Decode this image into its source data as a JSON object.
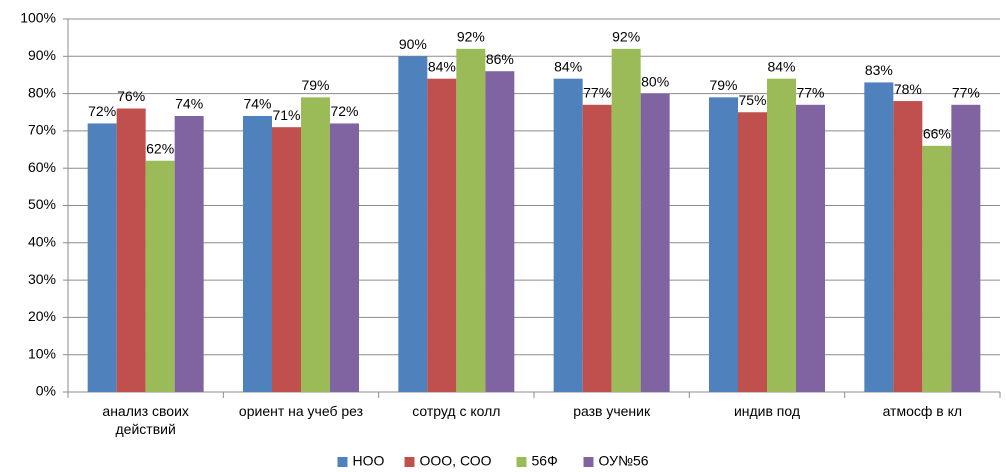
{
  "chart_data": {
    "type": "bar",
    "categories": [
      "анализ своих действий",
      "ориент на учеб рез",
      "сотруд с колл",
      "разв ученик",
      "индив под",
      "атмосф в кл"
    ],
    "series": [
      {
        "name": "НОО",
        "color": "#4f81bd",
        "values": [
          72,
          74,
          90,
          84,
          79,
          83
        ],
        "value_labels": [
          "72%",
          "74%",
          "90%",
          "84%",
          "79%",
          "83%"
        ]
      },
      {
        "name": "ООО, СОО",
        "color": "#c0504d",
        "values": [
          76,
          71,
          84,
          77,
          75,
          78
        ],
        "value_labels": [
          "76%",
          "71%",
          "84%",
          "77%",
          "75%",
          "78%"
        ]
      },
      {
        "name": "56Ф",
        "color": "#9bbb59",
        "values": [
          62,
          79,
          92,
          92,
          84,
          66
        ],
        "value_labels": [
          "62%",
          "79%",
          "92%",
          "92%",
          "84%",
          "66%"
        ]
      },
      {
        "name": "ОУ№56",
        "color": "#8064a2",
        "values": [
          74,
          72,
          86,
          80,
          77,
          77
        ],
        "value_labels": [
          "74%",
          "72%",
          "86%",
          "80%",
          "77%",
          "77%"
        ]
      }
    ],
    "ylim": [
      0,
      100
    ],
    "yticks": [
      {
        "value": 0,
        "label": "0%"
      },
      {
        "value": 10,
        "label": "10%"
      },
      {
        "value": 20,
        "label": "20%"
      },
      {
        "value": 30,
        "label": "30%"
      },
      {
        "value": 40,
        "label": "40%"
      },
      {
        "value": 50,
        "label": "50%"
      },
      {
        "value": 60,
        "label": "60%"
      },
      {
        "value": 70,
        "label": "70%"
      },
      {
        "value": 80,
        "label": "80%"
      },
      {
        "value": 90,
        "label": "90%"
      },
      {
        "value": 100,
        "label": "100%"
      }
    ],
    "grid": true,
    "legend": "bottom"
  }
}
